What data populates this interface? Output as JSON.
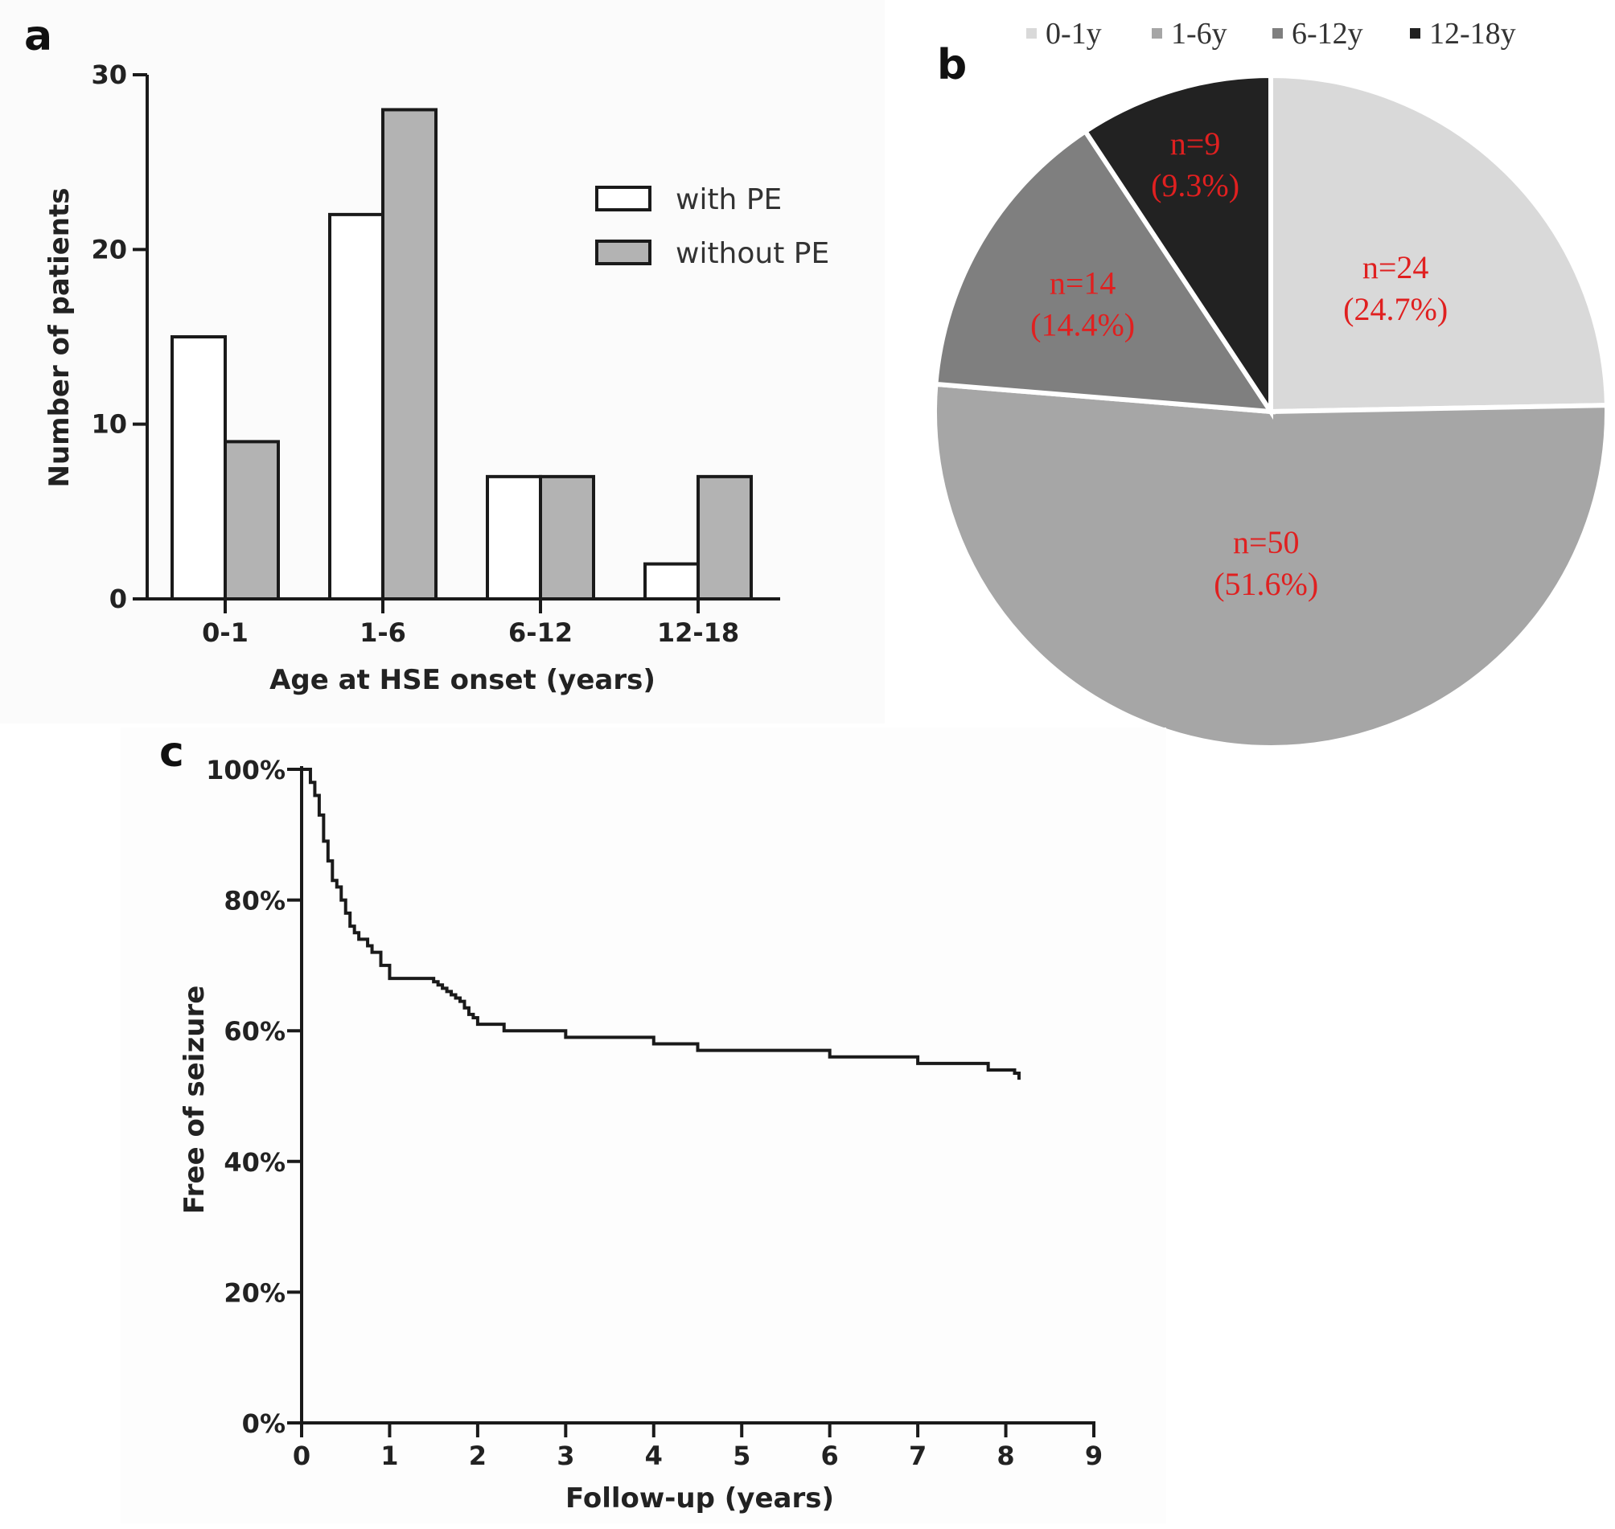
{
  "panels": {
    "a": {
      "letter": "a"
    },
    "b": {
      "letter": "b"
    },
    "c": {
      "letter": "c"
    }
  },
  "chart_data": [
    {
      "id": "a",
      "type": "bar",
      "title": "",
      "xlabel": "Age at HSE onset (years)",
      "ylabel": "Number of patients",
      "categories": [
        "0-1",
        "1-6",
        "6-12",
        "12-18"
      ],
      "series": [
        {
          "name": "with PE",
          "values": [
            15,
            22,
            7,
            2
          ],
          "color": "#ffffff"
        },
        {
          "name": "without PE",
          "values": [
            9,
            28,
            7,
            7
          ],
          "color": "#b3b3b3"
        }
      ],
      "ylim": [
        0,
        30
      ],
      "yticks": [
        0,
        10,
        20,
        30
      ],
      "grid": false,
      "legend": "top-right"
    },
    {
      "id": "b",
      "type": "pie",
      "legend": "top",
      "slices": [
        {
          "name": "0-1y",
          "n": 24,
          "value": 24.7,
          "label_n": "n=24",
          "label_pct": "(24.7%)",
          "color": "#d9d9d9"
        },
        {
          "name": "1-6y",
          "n": 50,
          "value": 51.6,
          "label_n": "n=50",
          "label_pct": "(51.6%)",
          "color": "#a6a6a6"
        },
        {
          "name": "6-12y",
          "n": 14,
          "value": 14.4,
          "label_n": "n=14",
          "label_pct": "(14.4%)",
          "color": "#7f7f7f"
        },
        {
          "name": "12-18y",
          "n": 9,
          "value": 9.3,
          "label_n": "n=9",
          "label_pct": "(9.3%)",
          "color": "#222222"
        }
      ],
      "label_color": "#e02020"
    },
    {
      "id": "c",
      "type": "line",
      "step": true,
      "title": "",
      "xlabel": "Follow-up (years)",
      "ylabel": "Free of seizure",
      "xlim": [
        0,
        9
      ],
      "ylim": [
        0,
        100
      ],
      "xticks": [
        0,
        1,
        2,
        3,
        4,
        5,
        6,
        7,
        8,
        9
      ],
      "yticks": [
        0,
        20,
        40,
        60,
        80,
        100
      ],
      "yticklabels": [
        "0%",
        "20%",
        "40%",
        "60%",
        "80%",
        "100%"
      ],
      "grid": false,
      "x": [
        0,
        0.1,
        0.15,
        0.2,
        0.25,
        0.3,
        0.35,
        0.4,
        0.45,
        0.5,
        0.55,
        0.6,
        0.65,
        0.7,
        0.75,
        0.8,
        0.9,
        1.0,
        1.2,
        1.4,
        1.5,
        1.55,
        1.6,
        1.65,
        1.7,
        1.75,
        1.8,
        1.85,
        1.9,
        1.95,
        2.0,
        2.3,
        3.0,
        4.0,
        4.5,
        6.0,
        7.0,
        7.8,
        8.1,
        8.15
      ],
      "y": [
        100,
        98,
        96,
        93,
        89,
        86,
        83,
        82,
        80,
        78,
        76,
        75,
        74,
        74,
        73,
        72,
        70,
        68,
        68,
        68,
        67.5,
        67,
        66.5,
        66,
        65.5,
        65,
        64.5,
        63.5,
        62.5,
        62,
        61,
        60,
        59,
        58,
        57,
        56,
        55,
        54,
        53.5,
        52.5
      ]
    }
  ]
}
